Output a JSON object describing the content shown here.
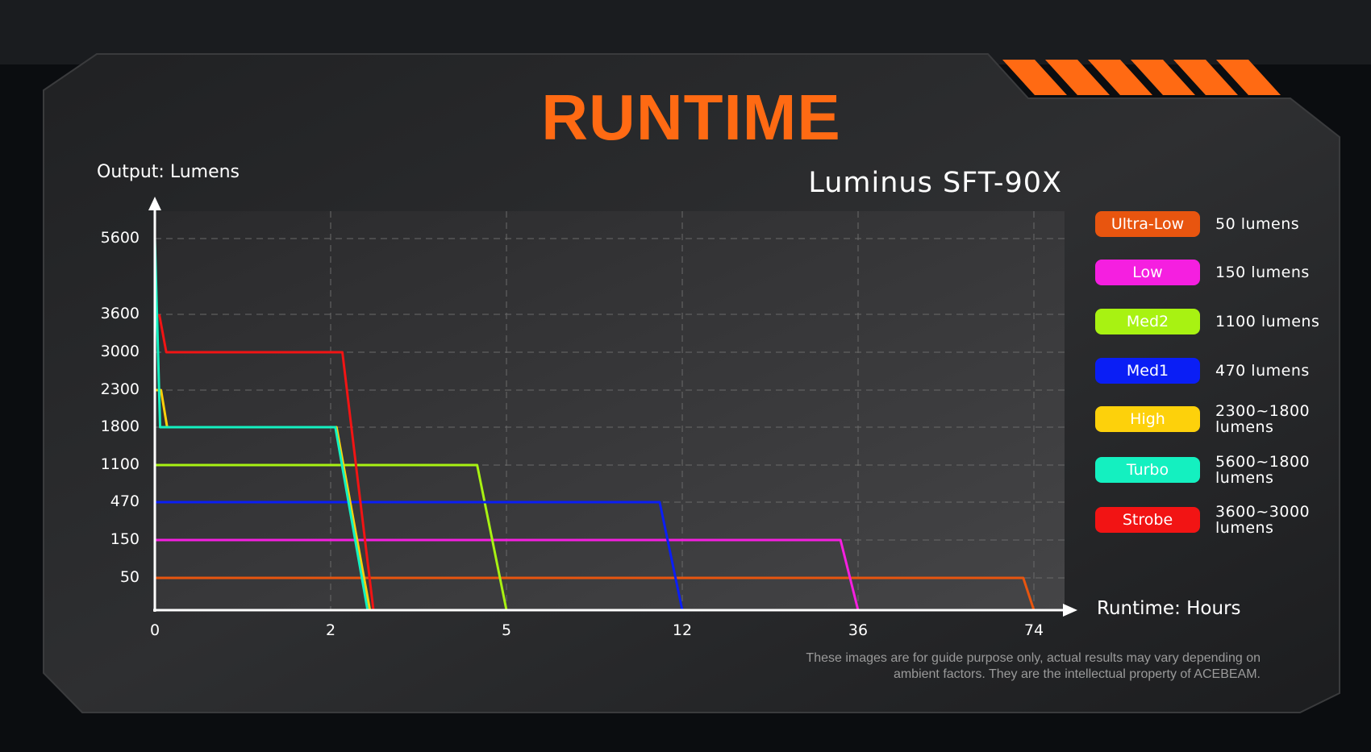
{
  "title": "RUNTIME",
  "chart_data": {
    "type": "line",
    "title": "Luminus SFT-90X",
    "ylabel": "Output: Lumens",
    "xlabel": "Runtime: Hours",
    "x_ticks": [
      0,
      2,
      5,
      12,
      36,
      74
    ],
    "y_ticks": [
      0,
      50,
      150,
      470,
      1100,
      1800,
      2300,
      3000,
      3600,
      5600
    ],
    "y_tick_labels": [
      "50",
      "150",
      "470",
      "1100",
      "1800",
      "2300",
      "3000",
      "3600",
      "5600"
    ],
    "axis_scale": "categorical ticks evenly spaced",
    "grid": true,
    "legend_placement": "right",
    "series": [
      {
        "name": "Ultra-Low",
        "desc": "50 lumens",
        "color": "#e8550f",
        "points": [
          [
            0,
            50
          ],
          [
            71.7,
            50
          ],
          [
            74,
            0
          ]
        ]
      },
      {
        "name": "Low",
        "desc": "150 lumens",
        "color": "#f51fe0",
        "points": [
          [
            0,
            150
          ],
          [
            33.6,
            150
          ],
          [
            36,
            0
          ]
        ]
      },
      {
        "name": "Med2",
        "desc": "1100 lumens",
        "color": "#a8f212",
        "points": [
          [
            0,
            1100
          ],
          [
            4.5,
            1100
          ],
          [
            5,
            0
          ]
        ]
      },
      {
        "name": "Med1",
        "desc": "470 lumens",
        "color": "#0a1ef5",
        "points": [
          [
            0,
            470
          ],
          [
            11.1,
            470
          ],
          [
            12,
            0
          ]
        ]
      },
      {
        "name": "High",
        "desc": "2300~1800 lumens",
        "color": "#fdd10b",
        "points": [
          [
            0,
            2300
          ],
          [
            0.07,
            2300
          ],
          [
            0.14,
            1800
          ],
          [
            2.1,
            1800
          ],
          [
            2.67,
            0
          ]
        ]
      },
      {
        "name": "Turbo",
        "desc": "5600~1800 lumens",
        "color": "#14f0c0",
        "points": [
          [
            0,
            5600
          ],
          [
            0.06,
            1800
          ],
          [
            2.08,
            1800
          ],
          [
            2.63,
            0
          ]
        ]
      },
      {
        "name": "Strobe",
        "desc": "3600~3000 lumens",
        "color": "#f21414",
        "points": [
          [
            0.05,
            3600
          ],
          [
            0.13,
            3000
          ],
          [
            2.2,
            3000
          ],
          [
            2.73,
            0
          ]
        ]
      }
    ]
  },
  "legend_desc_lines": [
    [
      "50 lumens"
    ],
    [
      "150 lumens"
    ],
    [
      "1100 lumens"
    ],
    [
      "470 lumens"
    ],
    [
      "2300~1800",
      "lumens"
    ],
    [
      "5600~1800",
      "lumens"
    ],
    [
      "3600~3000",
      "lumens"
    ]
  ],
  "disclaimer": [
    "These images are for guide purpose only, actual results may vary depending on",
    "ambient factors. They are the intellectual property of ACEBEAM."
  ],
  "colors": {
    "accent": "#ff6a13",
    "panel": "#2b2c2e"
  }
}
